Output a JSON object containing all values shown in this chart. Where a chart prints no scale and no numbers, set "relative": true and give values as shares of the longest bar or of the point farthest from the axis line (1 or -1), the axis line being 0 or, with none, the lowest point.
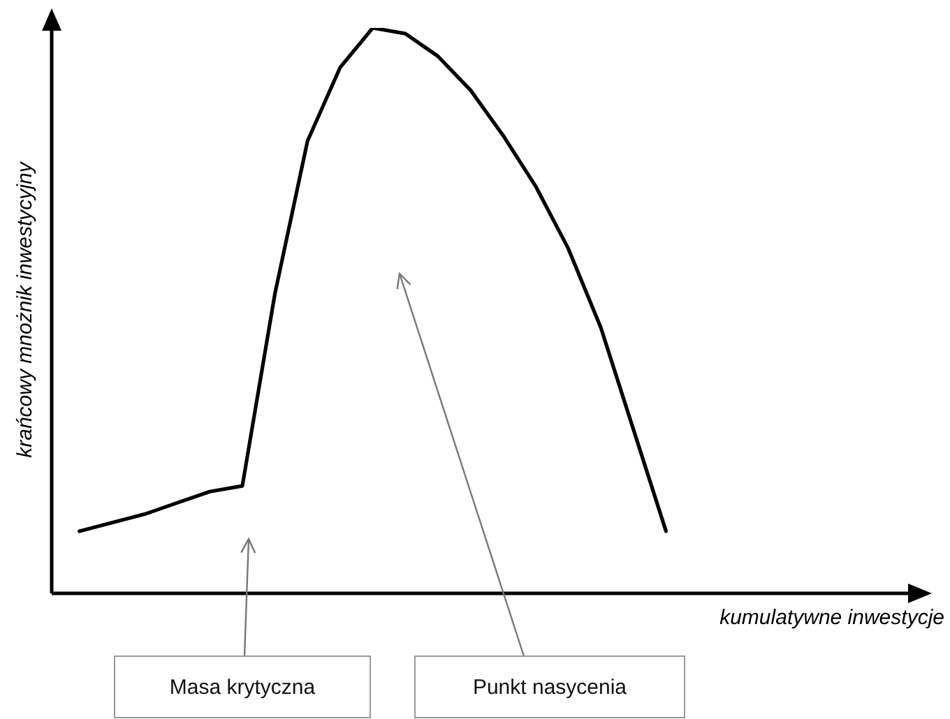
{
  "chart_data": {
    "type": "line",
    "relative": true,
    "xlabel": "kumulatywne inwestycje",
    "ylabel": "krańcowy mnożnik inwestycyjny",
    "categories": [
      null,
      null,
      null,
      null,
      null,
      null,
      null,
      null,
      null,
      null,
      null,
      null,
      null,
      null,
      null,
      null,
      null,
      null,
      null
    ],
    "color": "#000000",
    "values": [
      0.11,
      0.125,
      0.14,
      0.16,
      0.18,
      0.19,
      0.53,
      0.8,
      0.93,
      1,
      0.99,
      0.95,
      0.89,
      0.81,
      0.72,
      0.61,
      0.47,
      0.29,
      0.11
    ],
    "annotations": [
      "Masa krytyczna",
      "Punkt nasycenia"
    ]
  }
}
